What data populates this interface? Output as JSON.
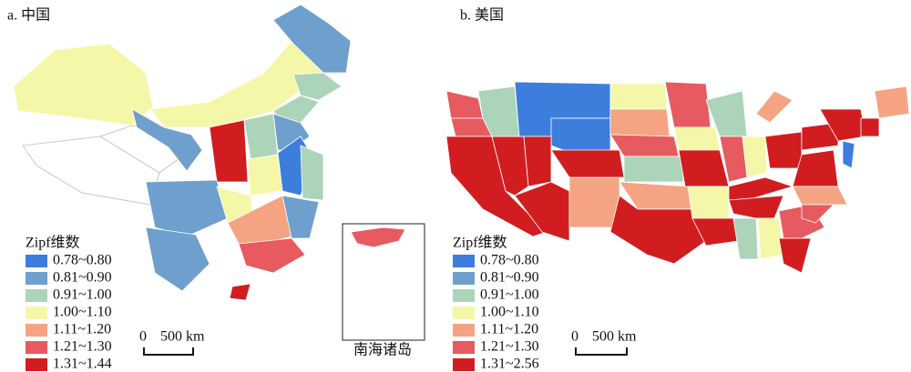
{
  "panels": [
    {
      "title": "a. 中国",
      "legend": {
        "title": "Zipf维数",
        "items": [
          {
            "label": "0.78~0.80",
            "color": "#3d7ddc"
          },
          {
            "label": "0.81~0.90",
            "color": "#6e9fcd"
          },
          {
            "label": "0.91~1.00",
            "color": "#acd4b8"
          },
          {
            "label": "1.00~1.10",
            "color": "#f5f7a8"
          },
          {
            "label": "1.11~1.20",
            "color": "#f4a483"
          },
          {
            "label": "1.21~1.30",
            "color": "#e75a60"
          },
          {
            "label": "1.31~1.44",
            "color": "#d11d20"
          }
        ]
      },
      "scale_bar": {
        "start": "0",
        "end": "500 km"
      },
      "inset_label": "南海诸岛"
    },
    {
      "title": "b. 美国",
      "legend": {
        "title": "Zipf维数",
        "items": [
          {
            "label": "0.78~0.80",
            "color": "#3d7ddc"
          },
          {
            "label": "0.81~0.90",
            "color": "#6e9fcd"
          },
          {
            "label": "0.91~1.00",
            "color": "#acd4b8"
          },
          {
            "label": "1.00~1.10",
            "color": "#f5f7a8"
          },
          {
            "label": "1.11~1.20",
            "color": "#f4a483"
          },
          {
            "label": "1.21~1.30",
            "color": "#e75a60"
          },
          {
            "label": "1.31~2.56",
            "color": "#d11d20"
          }
        ]
      },
      "scale_bar": {
        "start": "0",
        "end": "500 km"
      }
    }
  ]
}
